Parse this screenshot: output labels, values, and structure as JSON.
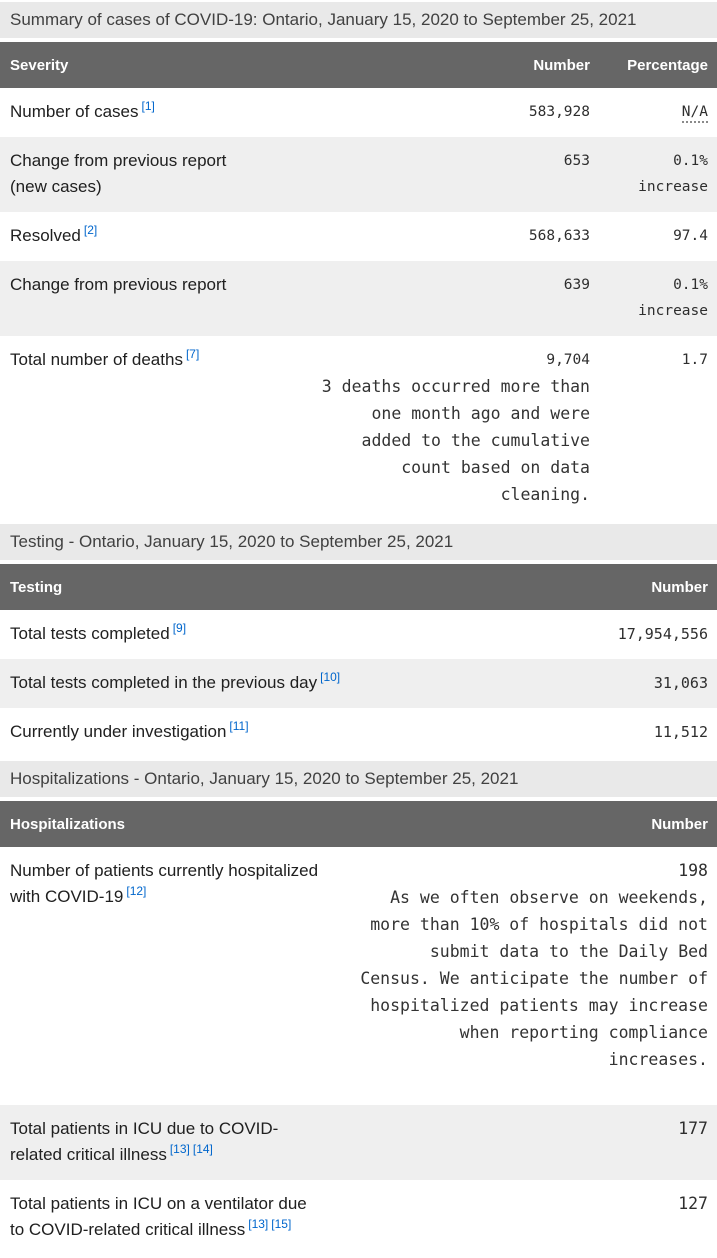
{
  "colors": {
    "link_blue": "#0066cc",
    "table_header_bg": "#666666",
    "section_bar_bg": "#e9e9e9",
    "alt_row_bg": "#efefef"
  },
  "summary": {
    "section_title": "Summary of cases of COVID-19: Ontario, January 15, 2020 to September 25, 2021",
    "table_headers": [
      "Severity",
      "Number",
      "Percentage"
    ],
    "rows": [
      {
        "label": "Number of cases",
        "footnotes": [
          "[1]"
        ],
        "number": "583,928",
        "percentage": "N/A",
        "percentage_is_abbr": true
      },
      {
        "label": "Change from previous report (new cases)",
        "footnotes": [],
        "number": "653",
        "percentage": "0.1% increase"
      },
      {
        "label": "Resolved",
        "footnotes": [
          "[2]"
        ],
        "number": "568,633",
        "percentage": "97.4"
      },
      {
        "label": "Change from previous report",
        "footnotes": [],
        "number": "639",
        "percentage": "0.1% increase"
      },
      {
        "label": "Total number of deaths",
        "footnotes": [
          "[7]"
        ],
        "number": "9,704",
        "number_note": "3 deaths occurred more than one month ago and were added to the cumulative count based on data cleaning.",
        "percentage": "1.7"
      }
    ]
  },
  "testing": {
    "section_title": "Testing - Ontario, January 15, 2020 to September 25, 2021",
    "table_headers": [
      "Testing",
      "Number"
    ],
    "rows": [
      {
        "label": "Total tests completed",
        "footnotes": [
          "[9]"
        ],
        "number": "17,954,556"
      },
      {
        "label": "Total tests completed in the previous day",
        "footnotes": [
          "[10]"
        ],
        "number": "31,063"
      },
      {
        "label": "Currently under investigation",
        "footnotes": [
          "[11]"
        ],
        "number": "11,512"
      }
    ]
  },
  "hospitalizations": {
    "section_title": "Hospitalizations - Ontario, January 15, 2020 to September 25, 2021",
    "table_headers": [
      "Hospitalizations",
      "Number"
    ],
    "rows": [
      {
        "label": "Number of patients currently hospitalized with COVID-19",
        "footnotes": [
          "[12]"
        ],
        "number": "198",
        "number_note": "As we often observe on weekends, more than 10% of hospitals did not submit data to the Daily Bed Census. We anticipate the number of hospitalized patients may increase when reporting compliance increases."
      },
      {
        "label": "Total patients in ICU due to COVID-related critical illness",
        "footnotes": [
          "[13]",
          "[14]"
        ],
        "number": "177"
      },
      {
        "label": "Total patients in ICU on a ventilator due to COVID-related critical illness",
        "footnotes": [
          "[13]",
          "[15]"
        ],
        "number": "127"
      }
    ]
  }
}
